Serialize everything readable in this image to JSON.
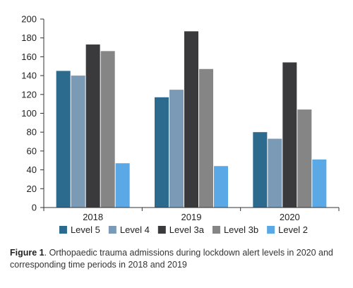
{
  "chart_data": {
    "type": "bar",
    "categories": [
      "2018",
      "2019",
      "2020"
    ],
    "series": [
      {
        "name": "Level 5",
        "color": "#2c6b8e",
        "values": [
          145,
          117,
          80
        ]
      },
      {
        "name": "Level 4",
        "color": "#7b9ab6",
        "values": [
          140,
          125,
          73
        ]
      },
      {
        "name": "Level 3a",
        "color": "#3a3a3c",
        "values": [
          173,
          187,
          154
        ]
      },
      {
        "name": "Level 3b",
        "color": "#858585",
        "values": [
          166,
          147,
          104
        ]
      },
      {
        "name": "Level 2",
        "color": "#5aa9e6",
        "values": [
          47,
          44,
          51
        ]
      }
    ],
    "ylim": [
      0,
      200
    ],
    "yticks": [
      0,
      20,
      40,
      60,
      80,
      100,
      120,
      140,
      160,
      180,
      200
    ],
    "xlabel": "",
    "ylabel": "",
    "grid": false,
    "legend_position": "bottom"
  },
  "caption": {
    "label": "Figure 1",
    "text": ". Orthopaedic trauma admissions during lockdown alert levels in 2020 and corresponding time periods in 2018 and 2019"
  }
}
